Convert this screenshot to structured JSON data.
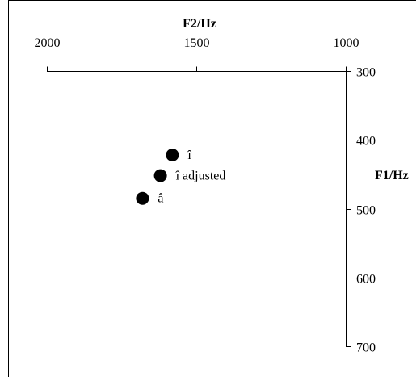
{
  "chart_data": {
    "type": "scatter",
    "xlabel": "F2/Hz",
    "ylabel": "F1/Hz",
    "xlim": [
      2000,
      1000
    ],
    "ylim": [
      300,
      700
    ],
    "x_reversed": true,
    "y_reversed": true,
    "x_ticks": [
      2000,
      1500,
      1000
    ],
    "y_ticks": [
      300,
      400,
      500,
      600,
      700
    ],
    "x_axis_position": "top",
    "y_axis_position": "right",
    "grid": false,
    "points": [
      {
        "label": "î",
        "x": 1580,
        "y": 422
      },
      {
        "label": "î adjusted",
        "x": 1620,
        "y": 452
      },
      {
        "label": "â",
        "x": 1680,
        "y": 485
      }
    ],
    "marker_color": "#000000"
  }
}
